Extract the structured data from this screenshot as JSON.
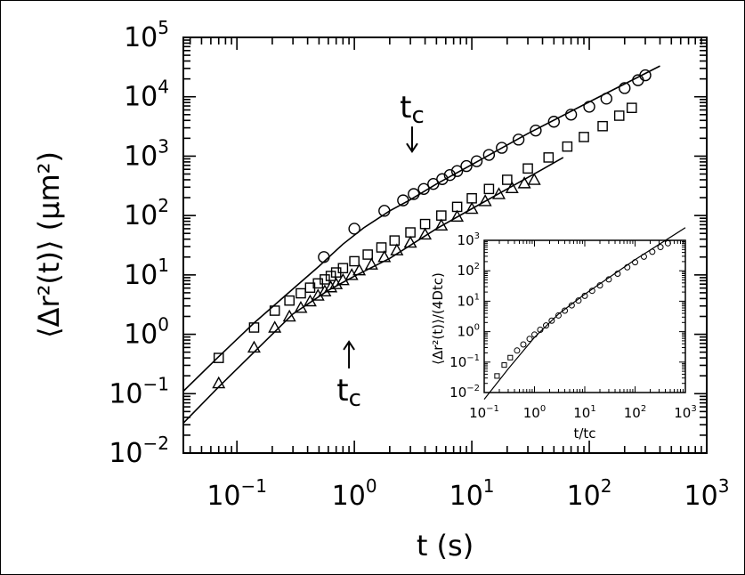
{
  "chart_data": [
    {
      "type": "scatter",
      "panel": "main",
      "xscale": "log",
      "yscale": "log",
      "xlim": [
        0.035,
        1000
      ],
      "ylim": [
        0.01,
        100000
      ],
      "xlabel": "t (s)",
      "ylabel": "⟨Δr²(t)⟩ (μm²)",
      "x_ticks": [
        {
          "base": "10",
          "exp": "−1",
          "value": 0.1
        },
        {
          "base": "10",
          "exp": "0",
          "value": 1
        },
        {
          "base": "10",
          "exp": "1",
          "value": 10
        },
        {
          "base": "10",
          "exp": "2",
          "value": 100
        },
        {
          "base": "10",
          "exp": "3",
          "value": 1000
        }
      ],
      "y_ticks": [
        {
          "base": "10",
          "exp": "−2",
          "value": 0.01
        },
        {
          "base": "10",
          "exp": "−1",
          "value": 0.1
        },
        {
          "base": "10",
          "exp": "0",
          "value": 1
        },
        {
          "base": "10",
          "exp": "1",
          "value": 10
        },
        {
          "base": "10",
          "exp": "2",
          "value": 100
        },
        {
          "base": "10",
          "exp": "3",
          "value": 1000
        },
        {
          "base": "10",
          "exp": "4",
          "value": 10000
        },
        {
          "base": "10",
          "exp": "5",
          "value": 100000
        }
      ],
      "series": [
        {
          "marker": "circle",
          "x": [
            0.55,
            1.0,
            1.8,
            2.6,
            3.2,
            3.9,
            4.7,
            5.6,
            6.5,
            7.5,
            9,
            11,
            14,
            18,
            25,
            35,
            50,
            70,
            100,
            140,
            200,
            260,
            300
          ],
          "y": [
            20,
            60,
            120,
            180,
            230,
            280,
            340,
            410,
            480,
            560,
            680,
            820,
            1050,
            1380,
            1900,
            2700,
            3800,
            5000,
            6800,
            9300,
            14000,
            19000,
            23000
          ]
        },
        {
          "marker": "square",
          "x": [
            0.07,
            0.14,
            0.21,
            0.28,
            0.35,
            0.42,
            0.49,
            0.56,
            0.63,
            0.7,
            0.8,
            1.0,
            1.3,
            1.7,
            2.2,
            3,
            4,
            5.5,
            7.5,
            10,
            14,
            20,
            30,
            45,
            65,
            90,
            130,
            180,
            230
          ],
          "y": [
            0.4,
            1.3,
            2.5,
            3.7,
            4.9,
            6.1,
            7.2,
            8.4,
            9.6,
            11,
            13,
            17,
            22,
            29,
            38,
            52,
            72,
            100,
            140,
            195,
            280,
            400,
            620,
            950,
            1450,
            2100,
            3200,
            4800,
            6500
          ]
        },
        {
          "marker": "triangle",
          "x": [
            0.07,
            0.14,
            0.21,
            0.28,
            0.35,
            0.42,
            0.49,
            0.56,
            0.63,
            0.7,
            0.8,
            0.95,
            1.1,
            1.4,
            1.8,
            2.3,
            3,
            4,
            5.5,
            7.5,
            10,
            13,
            17,
            22,
            28,
            34
          ],
          "y": [
            0.15,
            0.6,
            1.3,
            2.0,
            2.8,
            3.6,
            4.5,
            5.3,
            6.2,
            7.0,
            8.2,
            10,
            12,
            15,
            20,
            26,
            35,
            48,
            68,
            96,
            130,
            175,
            230,
            290,
            350,
            400
          ]
        }
      ],
      "fit_lines": [
        {
          "points": [
            [
              0.035,
              0.11
            ],
            [
              0.07,
              0.42
            ],
            [
              0.14,
              1.55
            ],
            [
              0.3,
              5.8
            ],
            [
              0.5,
              14
            ],
            [
              0.8,
              33
            ],
            [
              1.2,
              62
            ],
            [
              2,
              120
            ],
            [
              3,
              185
            ],
            [
              5,
              340
            ],
            [
              10,
              720
            ],
            [
              30,
              2400
            ],
            [
              100,
              8200
            ],
            [
              400,
              33000
            ]
          ]
        },
        {
          "points": [
            [
              0.035,
              0.032
            ],
            [
              0.07,
              0.13
            ],
            [
              0.14,
              0.5
            ],
            [
              0.3,
              2.2
            ],
            [
              0.6,
              5.5
            ],
            [
              1,
              9.5
            ],
            [
              2,
              19
            ],
            [
              5,
              60
            ],
            [
              10,
              130
            ],
            [
              20,
              280
            ],
            [
              40,
              600
            ],
            [
              60,
              950
            ]
          ]
        }
      ],
      "annotations": [
        {
          "text": "t",
          "sub": "c",
          "arrow": "down",
          "x": 3.1,
          "y": 1200
        },
        {
          "text": "t",
          "sub": "c",
          "arrow": "up",
          "x": 0.9,
          "y": 0.75
        }
      ]
    },
    {
      "type": "scatter",
      "panel": "inset",
      "xscale": "log",
      "yscale": "log",
      "xlim": [
        0.1,
        1000
      ],
      "ylim": [
        0.01,
        1000
      ],
      "xlabel": "t/tc",
      "ylabel": "⟨Δr²(t)⟩/(4Dtc)",
      "x_ticks": [
        {
          "base": "10",
          "exp": "−1",
          "value": 0.1
        },
        {
          "base": "10",
          "exp": "0",
          "value": 1
        },
        {
          "base": "10",
          "exp": "1",
          "value": 10
        },
        {
          "base": "10",
          "exp": "2",
          "value": 100
        },
        {
          "base": "10",
          "exp": "3",
          "value": 1000
        }
      ],
      "y_ticks": [
        {
          "base": "10",
          "exp": "−2",
          "value": 0.01
        },
        {
          "base": "10",
          "exp": "−1",
          "value": 0.1
        },
        {
          "base": "10",
          "exp": "0",
          "value": 1
        },
        {
          "base": "10",
          "exp": "1",
          "value": 10
        },
        {
          "base": "10",
          "exp": "2",
          "value": 100
        },
        {
          "base": "10",
          "exp": "3",
          "value": 1000
        }
      ],
      "series": [
        {
          "marker": "mixed",
          "x": [
            0.18,
            0.25,
            0.33,
            0.45,
            0.6,
            0.8,
            1.0,
            1.3,
            1.7,
            2.2,
            3,
            4,
            5.5,
            7.5,
            10,
            14,
            20,
            30,
            45,
            70,
            100,
            150,
            220,
            320,
            450
          ],
          "y": [
            0.035,
            0.08,
            0.14,
            0.24,
            0.38,
            0.58,
            0.8,
            1.15,
            1.6,
            2.3,
            3.4,
            4.9,
            7.3,
            10.5,
            15,
            22,
            33,
            52,
            80,
            130,
            190,
            290,
            420,
            600,
            800
          ]
        }
      ],
      "fit_lines": [
        {
          "points": [
            [
              0.1,
              0.006
            ],
            [
              0.3,
              0.06
            ],
            [
              1,
              0.65
            ],
            [
              3,
              3.8
            ],
            [
              10,
              17
            ],
            [
              100,
              230
            ],
            [
              1000,
              2600
            ]
          ]
        }
      ]
    }
  ]
}
